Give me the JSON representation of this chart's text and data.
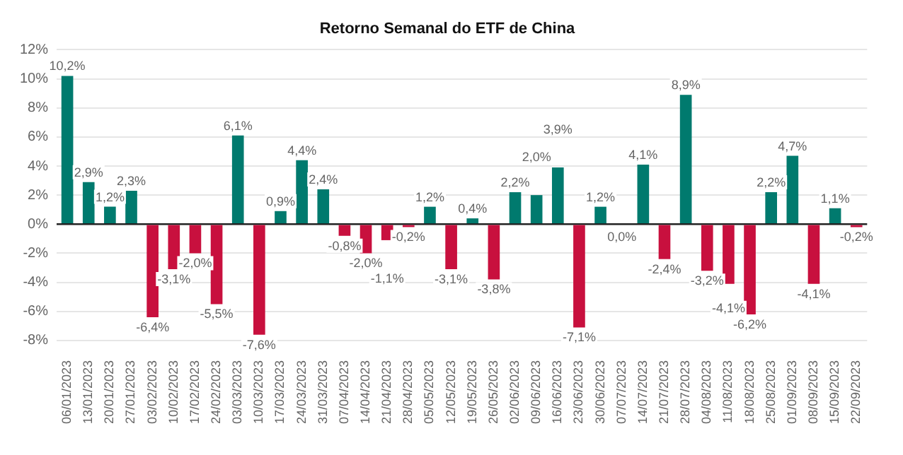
{
  "chart_data": {
    "type": "bar",
    "title": "Retorno Semanal do ETF de China",
    "categories": [
      "06/01/2023",
      "13/01/2023",
      "20/01/2023",
      "27/01/2023",
      "03/02/2023",
      "10/02/2023",
      "17/02/2023",
      "24/02/2023",
      "03/03/2023",
      "10/03/2023",
      "17/03/2023",
      "24/03/2023",
      "31/03/2023",
      "07/04/2023",
      "14/04/2023",
      "21/04/2023",
      "28/04/2023",
      "05/05/2023",
      "12/05/2023",
      "19/05/2023",
      "26/05/2023",
      "02/06/2023",
      "09/06/2023",
      "16/06/2023",
      "23/06/2023",
      "30/06/2023",
      "07/07/2023",
      "14/07/2023",
      "21/07/2023",
      "28/07/2023",
      "04/08/2023",
      "11/08/2023",
      "18/08/2023",
      "25/08/2023",
      "01/09/2023",
      "08/09/2023",
      "15/09/2023",
      "22/09/2023"
    ],
    "values": [
      10.2,
      2.9,
      1.2,
      2.3,
      -6.4,
      -3.1,
      -2.0,
      -5.5,
      6.1,
      -7.6,
      0.9,
      4.4,
      2.4,
      -0.8,
      -2.0,
      -1.1,
      -0.2,
      1.2,
      -3.1,
      0.4,
      -3.8,
      2.2,
      2.0,
      3.9,
      -7.1,
      1.2,
      0.0,
      4.1,
      -2.4,
      8.9,
      -3.2,
      -4.1,
      -6.2,
      2.2,
      4.7,
      -4.1,
      1.1,
      -0.2
    ],
    "value_labels": [
      "10,2%",
      "2,9%",
      "1,2%",
      "2,3%",
      "-6,4%",
      "-3,1%",
      "-2,0%",
      "-5,5%",
      "6,1%",
      "-7,6%",
      "0,9%",
      "4,4%",
      "2,4%",
      "-0,8%",
      "-2,0%",
      "-1,1%",
      "-0,2%",
      "1,2%",
      "-3,1%",
      "0,4%",
      "-3,8%",
      "2,2%",
      "2,0%",
      "3,9%",
      "-7,1%",
      "1,2%",
      "0,0%",
      "4,1%",
      "-2,4%",
      "8,9%",
      "-3,2%",
      "-4,1%",
      "-6,2%",
      "2,2%",
      "4,7%",
      "-4,1%",
      "1,1%",
      "-0,2%"
    ],
    "colors": [
      "#007a6e",
      "#007a6e",
      "#007a6e",
      "#007a6e",
      "#c8103e",
      "#c8103e",
      "#c8103e",
      "#c8103e",
      "#007a6e",
      "#c8103e",
      "#007a6e",
      "#007a6e",
      "#007a6e",
      "#c8103e",
      "#c8103e",
      "#c8103e",
      "#c8103e",
      "#007a6e",
      "#c8103e",
      "#007a6e",
      "#c8103e",
      "#007a6e",
      "#007a6e",
      "#007a6e",
      "#c8103e",
      "#007a6e",
      "#007a6e",
      "#007a6e",
      "#c8103e",
      "#007a6e",
      "#c8103e",
      "#c8103e",
      "#c8103e",
      "#007a6e",
      "#007a6e",
      "#c8103e",
      "#007a6e",
      "#c8103e"
    ],
    "ylim": [
      -8,
      12
    ],
    "yticks": [
      {
        "value": -8,
        "label": "-8%"
      },
      {
        "value": -6,
        "label": "-6%"
      },
      {
        "value": -4,
        "label": "-4%"
      },
      {
        "value": -2,
        "label": "-2%"
      },
      {
        "value": 0,
        "label": "0%"
      },
      {
        "value": 2,
        "label": "2%"
      },
      {
        "value": 4,
        "label": "4%"
      },
      {
        "value": 6,
        "label": "6%"
      },
      {
        "value": 8,
        "label": "8%"
      },
      {
        "value": 10,
        "label": "10%"
      },
      {
        "value": 12,
        "label": "12%"
      }
    ],
    "grid": "y",
    "legend": false
  }
}
